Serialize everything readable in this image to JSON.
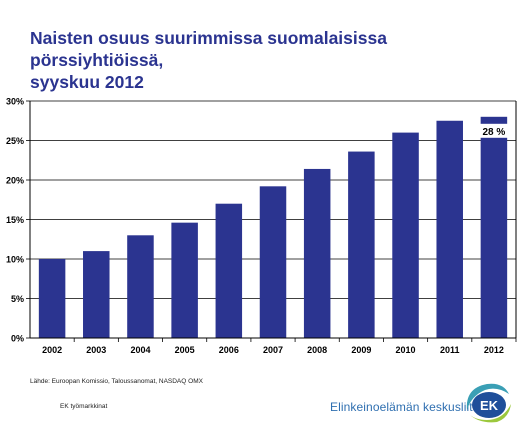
{
  "title_line1": "Naisten osuus suurimmissa suomalaisissa pörssiyhtiöissä,",
  "title_line2": "syyskuu 2012",
  "source": "Lähde: Euroopan Komissio, Taloussanomat,  NASDAQ OMX",
  "credit": "EK työmarkkinat",
  "brand": "Elinkeinoelämän keskusliitto",
  "logo_text": "EK",
  "colors": {
    "bar": "#2b3490",
    "title": "#2b3490",
    "brand": "#2f6fb0",
    "logo_teal": "#3a9fb5",
    "logo_green": "#9cc83d",
    "logo_blue": "#1f4e9a"
  },
  "chart_data": {
    "type": "bar",
    "title": "Naisten osuus suurimmissa suomalaisissa pörssiyhtiöissä, syyskuu 2012",
    "categories": [
      "2002",
      "2003",
      "2004",
      "2005",
      "2006",
      "2007",
      "2008",
      "2009",
      "2010",
      "2011",
      "2012"
    ],
    "values": [
      10,
      11,
      13,
      14.6,
      17,
      19.2,
      21.4,
      23.6,
      26,
      27.5,
      28
    ],
    "ylim": [
      0,
      30
    ],
    "yticks": [
      "0%",
      "5%",
      "10%",
      "15%",
      "20%",
      "25%",
      "30%"
    ],
    "grid": true,
    "annotation": {
      "category": "2012",
      "label": "28 %"
    }
  }
}
